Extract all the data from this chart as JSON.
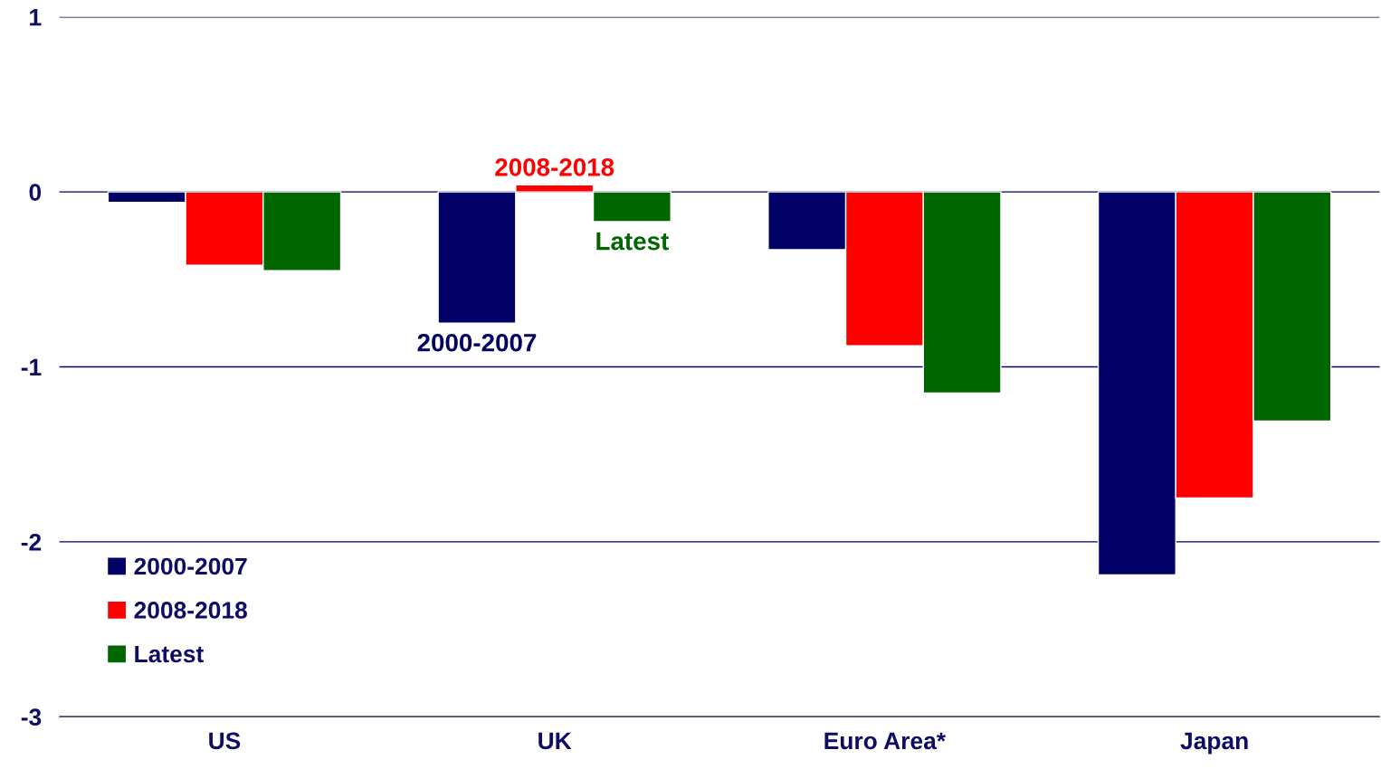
{
  "chart_data": {
    "type": "bar",
    "categories": [
      "US",
      "UK",
      "Euro Area*",
      "Japan"
    ],
    "series": [
      {
        "name": "2000-2007",
        "color": "#000066",
        "values": [
          -0.06,
          -0.75,
          -0.33,
          -2.19
        ]
      },
      {
        "name": "2008-2018",
        "color": "#ff0000",
        "values": [
          -0.42,
          0.04,
          -0.88,
          -1.75
        ]
      },
      {
        "name": "Latest",
        "color": "#006600",
        "values": [
          -0.45,
          -0.17,
          -1.15,
          -1.31
        ]
      }
    ],
    "annotations": [
      "2000-2007",
      "2008-2018",
      "Latest"
    ],
    "ylim": [
      -3,
      1
    ],
    "yticks": [
      -3,
      -2,
      -1,
      0,
      1
    ],
    "grid": "y",
    "legend": "bottom left"
  }
}
